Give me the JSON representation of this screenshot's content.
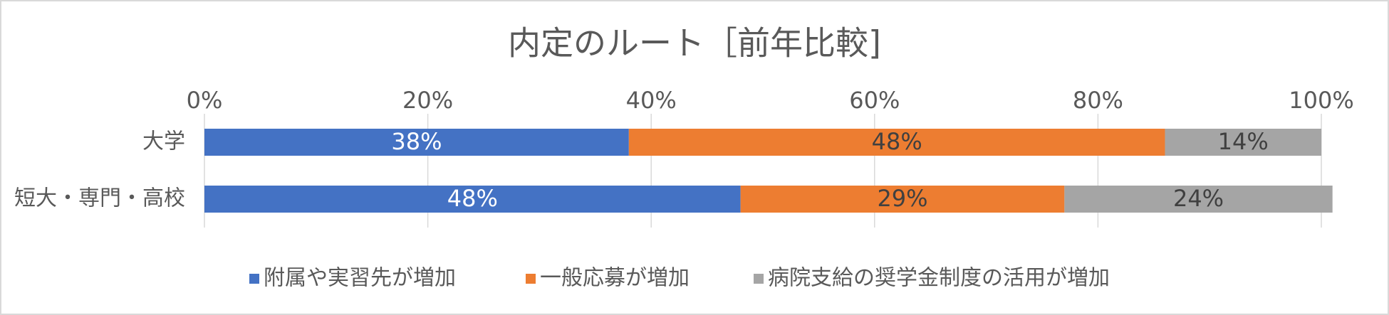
{
  "chart_data": {
    "type": "stacked-bar-horizontal",
    "title": "内定のルート［前年比較]",
    "categories": [
      "大学",
      "短大・専門・高校"
    ],
    "series": [
      {
        "name": "附属や実習先が増加",
        "color": "#4472c4",
        "values": [
          38,
          48
        ],
        "value_labels": [
          "38%",
          "48%"
        ]
      },
      {
        "name": "一般応募が増加",
        "color": "#ed7d31",
        "values": [
          48,
          29
        ],
        "value_labels": [
          "48%",
          "29%"
        ]
      },
      {
        "name": "病院支給の奨学金制度の活用が増加",
        "color": "#a5a5a5",
        "values": [
          14,
          24
        ],
        "value_labels": [
          "14%",
          "24%"
        ]
      }
    ],
    "xlim": [
      0,
      100
    ],
    "xticks": [
      {
        "value": 0,
        "label": "0%"
      },
      {
        "value": 20,
        "label": "20%"
      },
      {
        "value": 40,
        "label": "40%"
      },
      {
        "value": 60,
        "label": "60%"
      },
      {
        "value": 80,
        "label": "80%"
      },
      {
        "value": 100,
        "label": "100%"
      }
    ],
    "grid": true,
    "legend": "bottom"
  }
}
